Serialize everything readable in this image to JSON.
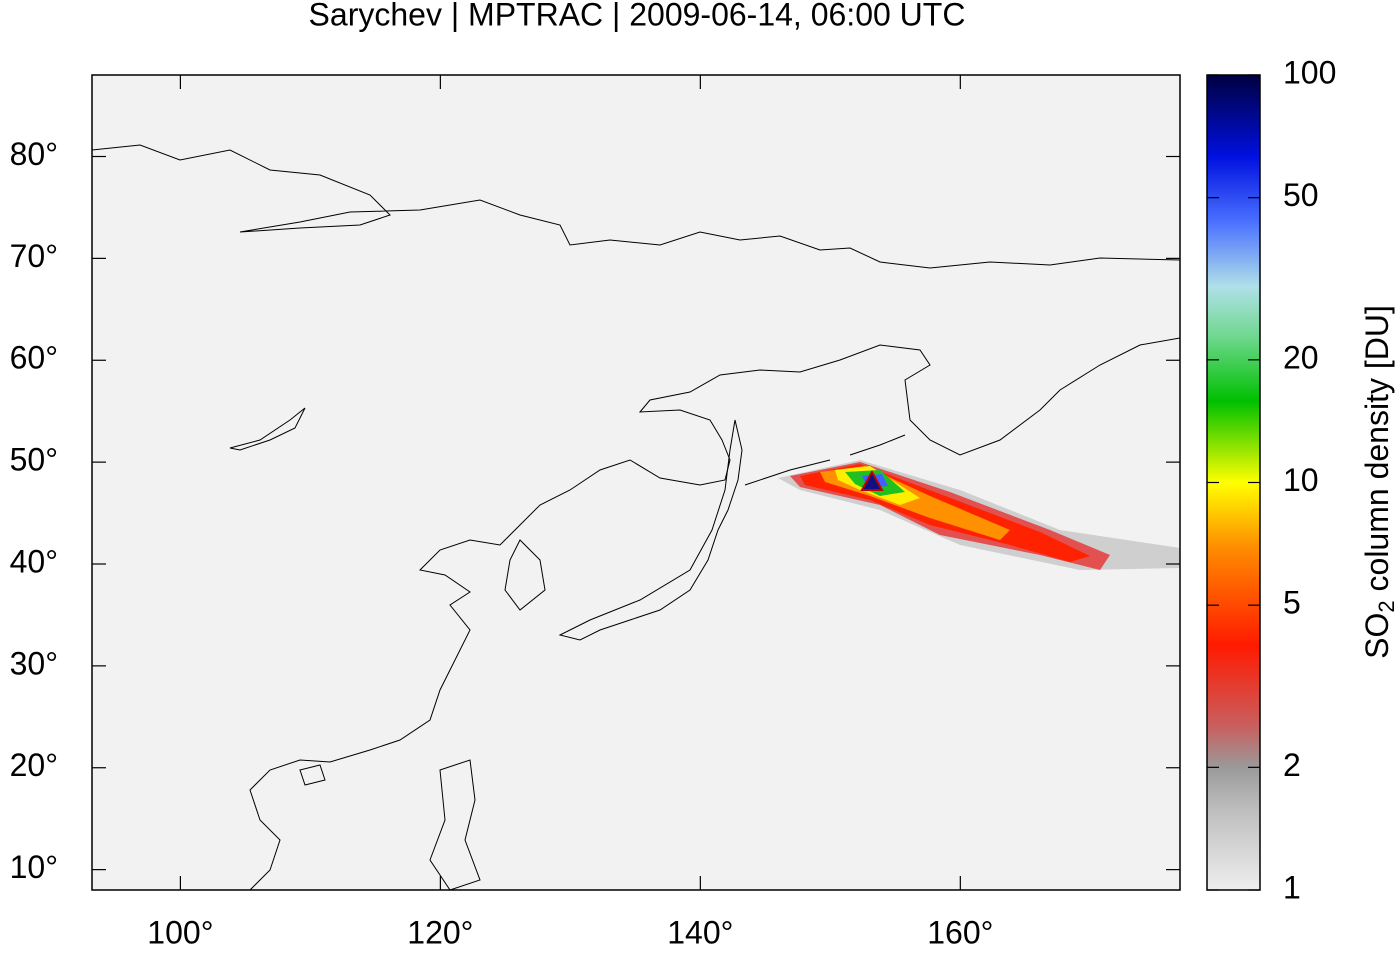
{
  "chart_data": {
    "type": "map",
    "title": "Sarychev | MPTRAC | 2009-06-14, 06:00 UTC",
    "xlim": [
      93.2,
      176.9
    ],
    "ylim": [
      8,
      88
    ],
    "xticks": [
      {
        "value": 100,
        "label": "100°"
      },
      {
        "value": 120,
        "label": "120°"
      },
      {
        "value": 140,
        "label": "140°"
      },
      {
        "value": 160,
        "label": "160°"
      }
    ],
    "yticks": [
      {
        "value": 10,
        "label": "10°"
      },
      {
        "value": 20,
        "label": "20°"
      },
      {
        "value": 30,
        "label": "30°"
      },
      {
        "value": 40,
        "label": "40°"
      },
      {
        "value": 50,
        "label": "50°"
      },
      {
        "value": 60,
        "label": "60°"
      },
      {
        "value": 70,
        "label": "70°"
      },
      {
        "value": 80,
        "label": "80°"
      }
    ],
    "colorbar": {
      "label": {
        "main": "SO",
        "sub": "2",
        "rest": " column density [DU]"
      },
      "lim": [
        1,
        100
      ],
      "log": true,
      "ticks": [
        1,
        2,
        5,
        10,
        20,
        50,
        100
      ]
    }
  }
}
